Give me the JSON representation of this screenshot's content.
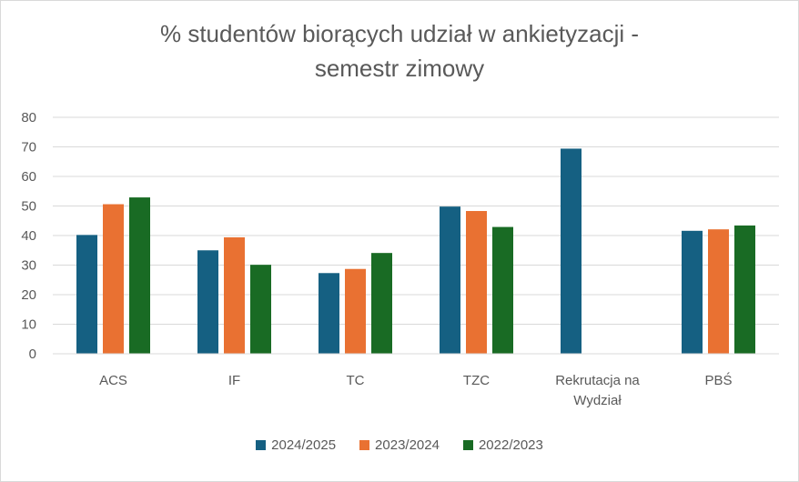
{
  "chart_data": {
    "type": "bar",
    "title_lines": [
      "% studentów biorących udział w ankietyzacji -",
      "semestr zimowy"
    ],
    "categories": [
      [
        "ACS"
      ],
      [
        "IF"
      ],
      [
        "TC"
      ],
      [
        "TZC"
      ],
      [
        "Rekrutacja na",
        "Wydział"
      ],
      [
        "PBŚ"
      ]
    ],
    "series": [
      {
        "name": "2024/2025",
        "color": "#156082",
        "values": [
          40.2,
          35,
          27.3,
          49.8,
          69.4,
          41.6
        ]
      },
      {
        "name": "2023/2024",
        "color": "#E97132",
        "values": [
          50.6,
          39.4,
          28.7,
          48.3,
          null,
          42.1
        ]
      },
      {
        "name": "2022/2023",
        "color": "#196B24",
        "values": [
          52.9,
          30.1,
          34.1,
          42.9,
          null,
          43.4
        ]
      }
    ],
    "ylim": [
      0,
      80
    ],
    "yticks": [
      0,
      10,
      20,
      30,
      40,
      50,
      60,
      70,
      80
    ],
    "grid": true,
    "legend_position": "bottom"
  }
}
